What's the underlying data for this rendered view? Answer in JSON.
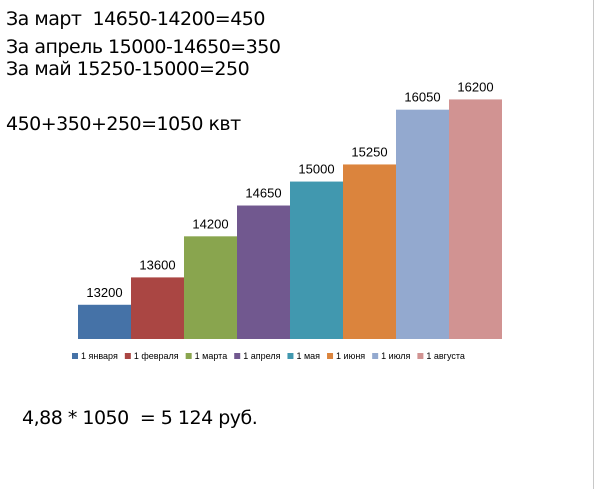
{
  "text_lines": {
    "march": "За март  14650-14200=450",
    "april": "За апрель 15000-14650=350",
    "may": "За май 15250-15000=250",
    "total": "450+350+250=1050 квт",
    "cost": "4,88 * 1050  = 5 124 руб."
  },
  "chart_data": {
    "type": "bar",
    "title": "",
    "xlabel": "",
    "ylabel": "",
    "ylim": [
      12700,
      16250
    ],
    "grid": false,
    "legend_position": "bottom",
    "categories": [
      "1 января",
      "1 февраля",
      "1 марта",
      "1 апреля",
      "1 мая",
      "1 июня",
      "1 июля",
      "1 августа"
    ],
    "values": [
      13200,
      13600,
      14200,
      14650,
      15000,
      15250,
      16050,
      16200
    ],
    "colors": [
      "#4572a7",
      "#aa4643",
      "#89a54e",
      "#71588f",
      "#4198af",
      "#db843d",
      "#93a9cf",
      "#d19392"
    ]
  }
}
